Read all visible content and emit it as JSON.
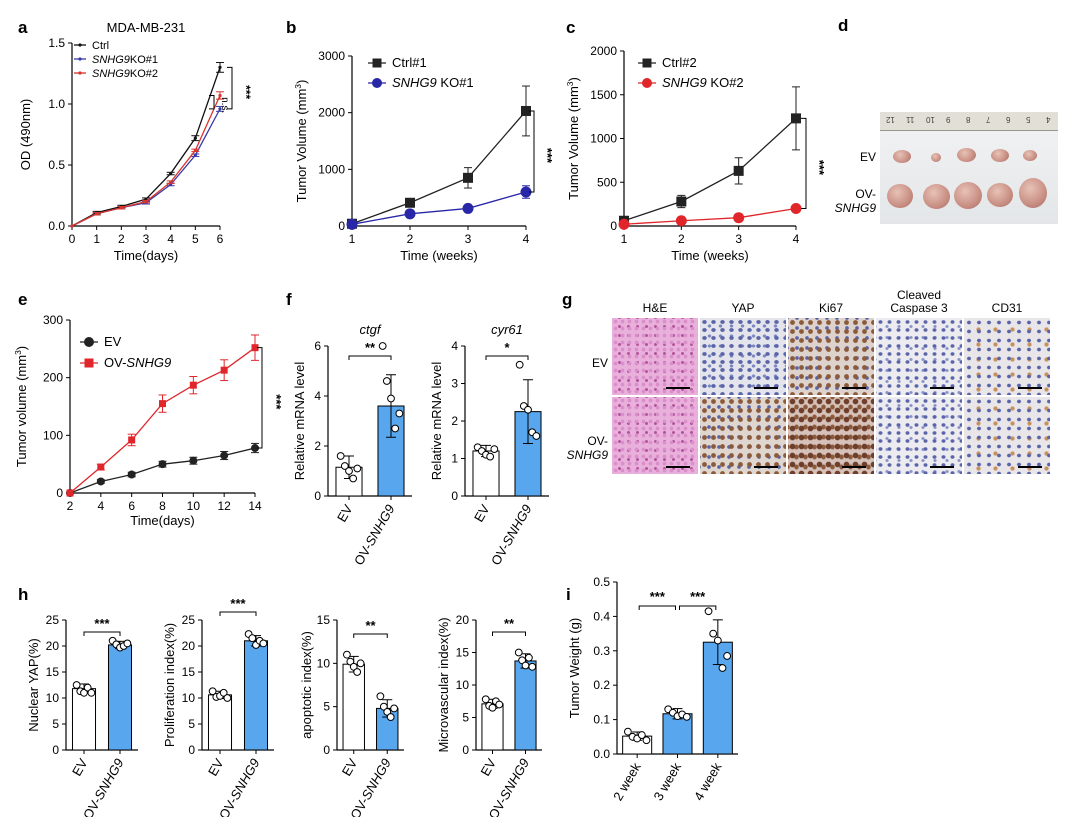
{
  "chart_data": [
    {
      "id": "a",
      "type": "line",
      "panel_label": "a",
      "title": "MDA-MB-231",
      "xlabel": "Time(days)",
      "ylabel": "OD (490nm)",
      "xlim": [
        0,
        6
      ],
      "ylim": [
        0,
        1.5
      ],
      "xticks": [
        "0",
        "1",
        "2",
        "3",
        "4",
        "5",
        "6"
      ],
      "yticks": [
        "0.0",
        "0.5",
        "1.0",
        "1.5"
      ],
      "x": [
        0,
        1,
        2,
        3,
        4,
        5,
        6
      ],
      "series": [
        {
          "name": "Ctrl",
          "color": "#111111",
          "values": [
            0.0,
            0.11,
            0.16,
            0.22,
            0.43,
            0.72,
            1.3
          ],
          "err": [
            0,
            0.01,
            0.01,
            0.01,
            0.01,
            0.02,
            0.04
          ]
        },
        {
          "name": "SNHG9 KO#1",
          "color": "#3a3aa8",
          "values": [
            0.0,
            0.1,
            0.15,
            0.19,
            0.34,
            0.58,
            0.96
          ],
          "err": [
            0,
            0.01,
            0.01,
            0.01,
            0.01,
            0.01,
            0.02
          ]
        },
        {
          "name": "SNHG9 KO#2",
          "color": "#d9342b",
          "values": [
            0.0,
            0.1,
            0.15,
            0.2,
            0.36,
            0.62,
            1.07
          ],
          "err": [
            0,
            0.01,
            0.01,
            0.01,
            0.01,
            0.01,
            0.03
          ]
        }
      ],
      "legend": [
        {
          "prefix": "",
          "italic": "",
          "suffix": "Ctrl"
        },
        {
          "prefix": "",
          "italic": "SNHG9",
          "suffix": "KO#1"
        },
        {
          "prefix": "",
          "italic": "SNHG9",
          "suffix": "KO#2"
        }
      ],
      "annotations": [
        "***",
        "n.s."
      ]
    },
    {
      "id": "b",
      "type": "line",
      "panel_label": "b",
      "xlabel": "Time (weeks)",
      "ylabel": "Tumor Volume (mm3)",
      "xlim": [
        1,
        4
      ],
      "ylim": [
        0,
        3000
      ],
      "xticks": [
        "1",
        "2",
        "3",
        "4"
      ],
      "yticks": [
        "0",
        "1000",
        "2000",
        "3000"
      ],
      "x": [
        1,
        2,
        3,
        4
      ],
      "series": [
        {
          "name": "Ctrl#1",
          "color": "#222222",
          "marker": "square",
          "values": [
            40,
            410,
            850,
            2030
          ],
          "err": [
            20,
            60,
            180,
            440
          ]
        },
        {
          "name": "SNHG9 KO#1",
          "color": "#2727a8",
          "marker": "circle",
          "values": [
            30,
            215,
            310,
            600
          ],
          "err": [
            10,
            30,
            40,
            110
          ]
        }
      ],
      "legend": [
        {
          "prefix": "",
          "italic": "",
          "suffix": "Ctrl#1"
        },
        {
          "prefix": "",
          "italic": "SNHG9",
          "suffix": " KO#1"
        }
      ],
      "annotations": [
        "***"
      ]
    },
    {
      "id": "c",
      "type": "line",
      "panel_label": "c",
      "xlabel": "Time (weeks)",
      "ylabel": "Tumor Volume (mm3)",
      "xlim": [
        1,
        4
      ],
      "ylim": [
        0,
        2000
      ],
      "xticks": [
        "1",
        "2",
        "3",
        "4"
      ],
      "yticks": [
        "0",
        "500",
        "1000",
        "1500",
        "2000"
      ],
      "x": [
        1,
        2,
        3,
        4
      ],
      "series": [
        {
          "name": "Ctrl#2",
          "color": "#222222",
          "marker": "square",
          "values": [
            60,
            280,
            630,
            1230
          ],
          "err": [
            20,
            70,
            150,
            360
          ]
        },
        {
          "name": "SNHG9 KO#2",
          "color": "#e0262b",
          "marker": "circle",
          "values": [
            20,
            60,
            95,
            200
          ],
          "err": [
            5,
            10,
            15,
            20
          ]
        }
      ],
      "legend": [
        {
          "prefix": "",
          "italic": "",
          "suffix": "Ctrl#2"
        },
        {
          "prefix": "",
          "italic": "SNHG9",
          "suffix": " KO#2"
        }
      ],
      "annotations": [
        "***"
      ]
    },
    {
      "id": "e",
      "type": "line",
      "panel_label": "e",
      "xlabel": "Time(days)",
      "ylabel": "Tumor volume (mm3)",
      "xlim": [
        2,
        14
      ],
      "ylim": [
        0,
        300
      ],
      "xticks": [
        "2",
        "4",
        "6",
        "8",
        "10",
        "12",
        "14"
      ],
      "yticks": [
        "0",
        "100",
        "200",
        "300"
      ],
      "x": [
        2,
        4,
        6,
        8,
        10,
        12,
        14
      ],
      "series": [
        {
          "name": "EV",
          "color": "#222222",
          "marker": "circle",
          "values": [
            0,
            20,
            32,
            50,
            56,
            65,
            78
          ],
          "err": [
            0,
            3,
            4,
            5,
            6,
            7,
            8
          ]
        },
        {
          "name": "OV-SNHG9",
          "color": "#e0262b",
          "marker": "square",
          "values": [
            0,
            45,
            92,
            155,
            187,
            213,
            252
          ],
          "err": [
            0,
            5,
            10,
            15,
            15,
            18,
            22
          ]
        }
      ],
      "legend": [
        {
          "prefix": "",
          "italic": "",
          "suffix": "EV"
        },
        {
          "prefix": "OV-",
          "italic": "SNHG9",
          "suffix": ""
        }
      ],
      "annotations": [
        "***"
      ]
    },
    {
      "id": "f1",
      "type": "bar",
      "panel_label": "f",
      "title": "ctgf",
      "ylabel": "Relative mRNA level",
      "ylim": [
        0,
        6
      ],
      "yticks": [
        "0",
        "2",
        "4",
        "6"
      ],
      "categories": [
        {
          "prefix": "EV",
          "italic": ""
        },
        {
          "prefix": "OV-",
          "italic": "SNHG9"
        }
      ],
      "values": [
        1.15,
        3.6
      ],
      "err": [
        0.45,
        1.25
      ],
      "points": [
        [
          1.6,
          1.2,
          1.0,
          0.7,
          1.1
        ],
        [
          6.0,
          4.6,
          3.9,
          2.7,
          3.3
        ]
      ],
      "colors": [
        "#ffffff",
        "#58a6ee"
      ],
      "annotations": [
        "**"
      ]
    },
    {
      "id": "f2",
      "type": "bar",
      "panel_label": "",
      "title": "cyr61",
      "ylabel": "Relative mRNA level",
      "ylim": [
        0,
        4
      ],
      "yticks": [
        "0",
        "1",
        "2",
        "3",
        "4"
      ],
      "categories": [
        {
          "prefix": "EV",
          "italic": ""
        },
        {
          "prefix": "OV-",
          "italic": "SNHG9"
        }
      ],
      "values": [
        1.2,
        2.25
      ],
      "err": [
        0.15,
        0.85
      ],
      "points": [
        [
          1.3,
          1.2,
          1.1,
          1.05,
          1.25
        ],
        [
          3.5,
          2.4,
          2.3,
          1.7,
          1.6
        ]
      ],
      "colors": [
        "#ffffff",
        "#58a6ee"
      ],
      "annotations": [
        "*"
      ]
    },
    {
      "id": "h1",
      "type": "bar",
      "panel_label": "h",
      "ylabel": "Nuclear YAP(%)",
      "ylim": [
        0,
        25
      ],
      "yticks": [
        "0",
        "5",
        "10",
        "15",
        "20",
        "25"
      ],
      "categories": [
        {
          "prefix": "EV",
          "italic": ""
        },
        {
          "prefix": "OV-",
          "italic": "SNHG9"
        }
      ],
      "values": [
        11.8,
        20.2
      ],
      "err": [
        0.9,
        0.7
      ],
      "points": [
        [
          12.5,
          11.3,
          11.0,
          12.0,
          11.0
        ],
        [
          21.0,
          20.3,
          19.7,
          20.0,
          20.5
        ]
      ],
      "colors": [
        "#ffffff",
        "#58a6ee"
      ],
      "annotations": [
        "***"
      ]
    },
    {
      "id": "h2",
      "type": "bar",
      "panel_label": "",
      "ylabel": "Proliferation index(%)",
      "ylim": [
        0,
        25
      ],
      "yticks": [
        "0",
        "5",
        "10",
        "15",
        "20",
        "25"
      ],
      "categories": [
        {
          "prefix": "EV",
          "italic": ""
        },
        {
          "prefix": "OV-",
          "italic": "SNHG9"
        }
      ],
      "values": [
        10.6,
        21.0
      ],
      "err": [
        0.7,
        1.0
      ],
      "points": [
        [
          11.3,
          10.2,
          10.4,
          11.0,
          10.0
        ],
        [
          22.3,
          21.5,
          20.2,
          21.0,
          20.5
        ]
      ],
      "colors": [
        "#ffffff",
        "#58a6ee"
      ],
      "annotations": [
        "***"
      ]
    },
    {
      "id": "h3",
      "type": "bar",
      "panel_label": "",
      "ylabel": "apoptotic index(%)",
      "ylim": [
        0,
        15
      ],
      "yticks": [
        "0",
        "5",
        "10",
        "15"
      ],
      "categories": [
        {
          "prefix": "EV",
          "italic": ""
        },
        {
          "prefix": "OV-",
          "italic": "SNHG9"
        }
      ],
      "values": [
        9.9,
        4.8
      ],
      "err": [
        0.9,
        1.0
      ],
      "points": [
        [
          11.0,
          10.2,
          9.6,
          9.0,
          10.0
        ],
        [
          6.2,
          5.0,
          4.4,
          3.8,
          4.8
        ]
      ],
      "colors": [
        "#ffffff",
        "#58a6ee"
      ],
      "annotations": [
        "**"
      ]
    },
    {
      "id": "h4",
      "type": "bar",
      "panel_label": "",
      "ylabel": "Microvascular index(%)",
      "ylim": [
        0,
        20
      ],
      "yticks": [
        "0",
        "5",
        "10",
        "15",
        "20"
      ],
      "categories": [
        {
          "prefix": "EV",
          "italic": ""
        },
        {
          "prefix": "OV-",
          "italic": "SNHG9"
        }
      ],
      "values": [
        7.1,
        13.7
      ],
      "err": [
        0.7,
        1.1
      ],
      "points": [
        [
          7.8,
          6.8,
          6.5,
          7.5,
          7.0
        ],
        [
          15.0,
          13.8,
          13.0,
          14.2,
          12.8
        ]
      ],
      "colors": [
        "#ffffff",
        "#58a6ee"
      ],
      "annotations": [
        "**"
      ]
    },
    {
      "id": "i",
      "type": "bar",
      "panel_label": "i",
      "ylabel": "Tumor Weight (g)",
      "ylim": [
        0,
        0.5
      ],
      "yticks": [
        "0.0",
        "0.1",
        "0.2",
        "0.3",
        "0.4",
        "0.5"
      ],
      "categories": [
        {
          "prefix": "2 week",
          "italic": ""
        },
        {
          "prefix": "3 week",
          "italic": ""
        },
        {
          "prefix": "4 week",
          "italic": ""
        }
      ],
      "values": [
        0.052,
        0.117,
        0.325
      ],
      "err": [
        0.012,
        0.015,
        0.065
      ],
      "points": [
        [
          0.065,
          0.05,
          0.045,
          0.055,
          0.04
        ],
        [
          0.13,
          0.12,
          0.11,
          0.115,
          0.108
        ],
        [
          0.415,
          0.35,
          0.33,
          0.25,
          0.285
        ]
      ],
      "colors": [
        "#ffffff",
        "#58a6ee",
        "#58a6ee"
      ],
      "annotations": [
        "***",
        "***"
      ]
    }
  ],
  "panel_d": {
    "label": "d",
    "rows": [
      {
        "prefix": "EV",
        "italic": ""
      },
      {
        "prefix": "OV-",
        "italic": "SNHG9"
      }
    ],
    "ruler_ticks": [
      "12",
      "11",
      "10",
      "9",
      "8",
      "7",
      "6",
      "5",
      "4"
    ],
    "colors": {
      "tray": "#eceeef",
      "ruler": "#e2e0d6",
      "tumor": "#c98f84"
    }
  },
  "panel_g": {
    "label": "g",
    "columns": [
      "H&E",
      "YAP",
      "Ki67",
      "Cleaved Caspase 3",
      "CD31"
    ],
    "rows": [
      {
        "prefix": "EV",
        "italic": ""
      },
      {
        "prefix": "OV-",
        "italic": "SNHG9"
      }
    ],
    "colors": {
      "he": "#d98fc9",
      "hematoxylin": "#5a64a8",
      "dab": "#8a5a3a"
    }
  }
}
